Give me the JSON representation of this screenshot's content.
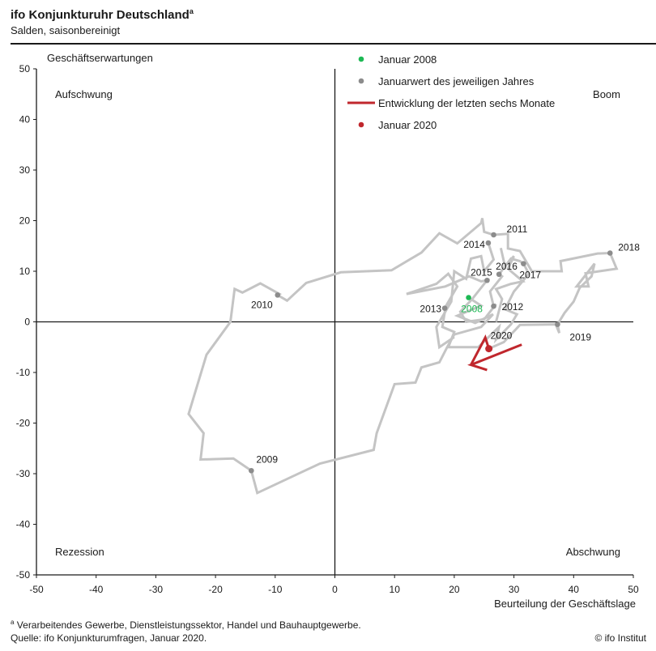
{
  "header": {
    "title": "ifo Konjunkturuhr  Deutschland",
    "title_sup": "a",
    "subtitle": "Salden, saisonbereinigt"
  },
  "footer": {
    "footnote_sup": "a",
    "footnote": "Verarbeitendes Gewerbe, Dienstleistungssektor, Handel und Bauhauptgewerbe.",
    "source": "Quelle: ifo Konjunkturumfragen, Januar 2020.",
    "copyright": "© ifo Institut"
  },
  "chart_data": {
    "type": "line",
    "title": "ifo Konjunkturuhr Deutschland",
    "subtitle": "Salden, saisonbereinigt",
    "xlabel": "Beurteilung der Geschäftslage",
    "ylabel": "Geschäftserwartungen",
    "xlim": [
      -50,
      50
    ],
    "ylim": [
      -50,
      50
    ],
    "x_ticks": [
      -50,
      -40,
      -30,
      -20,
      -10,
      0,
      10,
      20,
      30,
      40,
      50
    ],
    "y_ticks": [
      50,
      40,
      30,
      20,
      10,
      0,
      -10,
      -20,
      -30,
      -40,
      -50
    ],
    "grid": false,
    "quadrants": {
      "top_left": "Aufschwung",
      "top_right": "Boom",
      "bottom_left": "Rezession",
      "bottom_right": "Abschwung"
    },
    "legend": [
      {
        "label": "Januar 2008",
        "type": "dot",
        "color": "#1db954"
      },
      {
        "label": "Januarwert des jeweiligen Jahres",
        "type": "dot",
        "color": "#8c8c8c"
      },
      {
        "label": "Entwicklung der letzten sechs Monate",
        "type": "line",
        "color": "#c0272d"
      },
      {
        "label": "Januar 2020",
        "type": "dot",
        "color": "#c0272d"
      }
    ],
    "colors": {
      "path": "#c4c4c4",
      "recent": "#c0272d",
      "start": "#1db954",
      "year": "#8c8c8c",
      "axis": "#1a1a1a"
    },
    "january_points": [
      {
        "label": "2008",
        "x": 22.4,
        "y": 4.8,
        "kind": "start"
      },
      {
        "label": "2009",
        "x": -14.0,
        "y": -29.4,
        "kind": "year"
      },
      {
        "label": "2010",
        "x": -9.6,
        "y": 5.3,
        "kind": "year"
      },
      {
        "label": "2011",
        "x": 26.6,
        "y": 17.2,
        "kind": "year"
      },
      {
        "label": "2012",
        "x": 26.6,
        "y": 3.1,
        "kind": "year"
      },
      {
        "label": "2013",
        "x": 18.4,
        "y": 2.7,
        "kind": "year"
      },
      {
        "label": "2014",
        "x": 25.7,
        "y": 15.6,
        "kind": "year"
      },
      {
        "label": "2015",
        "x": 25.5,
        "y": 8.2,
        "kind": "year"
      },
      {
        "label": "2016",
        "x": 27.5,
        "y": 9.4,
        "kind": "year"
      },
      {
        "label": "2017",
        "x": 31.6,
        "y": 11.5,
        "kind": "year"
      },
      {
        "label": "2018",
        "x": 46.1,
        "y": 13.6,
        "kind": "year"
      },
      {
        "label": "2019",
        "x": 37.3,
        "y": -0.5,
        "kind": "year"
      },
      {
        "label": "2020",
        "x": 25.8,
        "y": -5.3,
        "kind": "end"
      }
    ],
    "history_path": [
      [
        22.4,
        4.8
      ],
      [
        24.5,
        3.2
      ],
      [
        20.5,
        1.2
      ],
      [
        23.5,
        -0.2
      ],
      [
        26.5,
        1.5
      ],
      [
        24.5,
        -1
      ],
      [
        20,
        -2.5
      ],
      [
        18.8,
        -5
      ],
      [
        17.5,
        -8
      ],
      [
        14.5,
        -9
      ],
      [
        13.5,
        -12
      ],
      [
        10,
        -12.3
      ],
      [
        7,
        -22
      ],
      [
        6.5,
        -25.3
      ],
      [
        -2.5,
        -28
      ],
      [
        -13,
        -33.8
      ],
      [
        -14,
        -29.4
      ],
      [
        -17,
        -27
      ],
      [
        -22.5,
        -27.2
      ],
      [
        -22,
        -22
      ],
      [
        -24.5,
        -18.2
      ],
      [
        -21.5,
        -6.5
      ],
      [
        -17.5,
        0
      ],
      [
        -16.8,
        6.5
      ],
      [
        -15.5,
        5.8
      ],
      [
        -12.5,
        7.6
      ],
      [
        -9.3,
        5.5
      ],
      [
        -9.6,
        5.3
      ],
      [
        -8,
        4.2
      ],
      [
        -4.8,
        7.7
      ],
      [
        1,
        9.8
      ],
      [
        9.5,
        10.2
      ],
      [
        14.5,
        13.7
      ],
      [
        17.5,
        17.5
      ],
      [
        20.5,
        15.5
      ],
      [
        24.5,
        19.5
      ],
      [
        24.7,
        20.5
      ],
      [
        25,
        17.8
      ],
      [
        26.6,
        17.2
      ],
      [
        29,
        17.4
      ],
      [
        29,
        14.5
      ],
      [
        31,
        14
      ],
      [
        33,
        10
      ],
      [
        38,
        10
      ],
      [
        37.8,
        12
      ],
      [
        44,
        13.5
      ],
      [
        46.1,
        13.6
      ],
      [
        47.2,
        10.5
      ],
      [
        42,
        9.6
      ],
      [
        42.5,
        7
      ],
      [
        40.5,
        7
      ],
      [
        43.5,
        11.5
      ],
      [
        43,
        9
      ],
      [
        41,
        6.7
      ],
      [
        40,
        4
      ],
      [
        38.5,
        1.8
      ],
      [
        37.3,
        -0.5
      ],
      [
        37.6,
        -2.2
      ],
      [
        37,
        -0.5
      ],
      [
        31,
        -0.6
      ],
      [
        28.3,
        -4
      ],
      [
        25.8,
        -5.3
      ]
    ],
    "cluster_path": [
      [
        18.4,
        2.7
      ],
      [
        20.5,
        7
      ],
      [
        19,
        9.5
      ],
      [
        17,
        7.5
      ],
      [
        12,
        5.5
      ],
      [
        18.5,
        7
      ],
      [
        22.5,
        9
      ],
      [
        24.5,
        8
      ],
      [
        25.5,
        8.2
      ],
      [
        24,
        6
      ],
      [
        23,
        4.5
      ],
      [
        21,
        2
      ],
      [
        22,
        0
      ],
      [
        25,
        0.5
      ],
      [
        27,
        3.5
      ],
      [
        26.6,
        3.1
      ],
      [
        26,
        6
      ],
      [
        28,
        9
      ],
      [
        27.5,
        9.4
      ],
      [
        29.5,
        12.5
      ],
      [
        31,
        12
      ],
      [
        31.6,
        11.5
      ],
      [
        32.5,
        9.5
      ],
      [
        30,
        6
      ],
      [
        28.5,
        2.5
      ],
      [
        30.5,
        1.5
      ],
      [
        29.5,
        -0.5
      ],
      [
        27,
        -3.5
      ],
      [
        27.5,
        -1
      ],
      [
        24,
        -5
      ],
      [
        19,
        -5
      ],
      [
        20,
        -2
      ],
      [
        18,
        -1
      ],
      [
        18.5,
        2.5
      ],
      [
        18.4,
        2.7
      ]
    ],
    "cluster_path_2": [
      [
        25.7,
        15.6
      ],
      [
        26.6,
        12.3
      ],
      [
        25,
        10
      ],
      [
        24.5,
        13
      ],
      [
        22.8,
        12.5
      ],
      [
        22,
        8.5
      ],
      [
        20,
        10
      ],
      [
        19.5,
        4
      ],
      [
        17,
        -1
      ],
      [
        17.5,
        -5
      ],
      [
        20,
        -3
      ]
    ],
    "cluster_path_3": [
      [
        27.8,
        14.6
      ],
      [
        28.5,
        11
      ],
      [
        30,
        13
      ],
      [
        29,
        10.5
      ],
      [
        31.5,
        8
      ],
      [
        29.5,
        7.5
      ],
      [
        27,
        6.5
      ],
      [
        28,
        4.5
      ],
      [
        27,
        0
      ]
    ],
    "recent_path": [
      [
        26,
        -5.5
      ],
      [
        24,
        -6.5
      ],
      [
        22.8,
        -8.5
      ],
      [
        25.5,
        -9.5
      ],
      [
        22.8,
        -8.5
      ],
      [
        24.5,
        -8
      ],
      [
        31.3,
        -7.2
      ]
    ],
    "recent_arrow_path": [
      [
        31.3,
        -4.5
      ],
      [
        22.8,
        -8.5
      ],
      [
        25.5,
        -9.5
      ]
    ],
    "recent_tail": [
      [
        25.8,
        -5.3
      ],
      [
        25.2,
        -3.1
      ],
      [
        22.8,
        -8.5
      ]
    ]
  }
}
